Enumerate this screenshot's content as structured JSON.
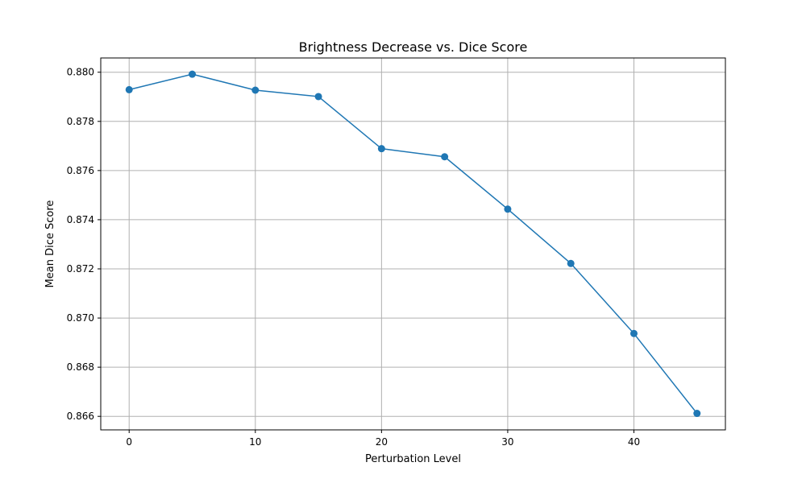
{
  "chart_data": {
    "type": "line",
    "title": "Brightness Decrease vs. Dice Score",
    "xlabel": "Perturbation Level",
    "ylabel": "Mean Dice Score",
    "xlim": [
      -2.25,
      47.25
    ],
    "ylim": [
      0.86545,
      0.88058
    ],
    "xticks": [
      0,
      10,
      20,
      30,
      40
    ],
    "xtick_labels": [
      "0",
      "10",
      "20",
      "30",
      "40"
    ],
    "yticks": [
      0.866,
      0.868,
      0.87,
      0.872,
      0.874,
      0.876,
      0.878,
      0.88
    ],
    "ytick_labels": [
      "0.866",
      "0.868",
      "0.870",
      "0.872",
      "0.874",
      "0.876",
      "0.878",
      "0.880"
    ],
    "grid": true,
    "series": [
      {
        "color": "#1f77b4",
        "marker": "circle",
        "x": [
          0,
          5,
          10,
          15,
          20,
          25,
          30,
          35,
          40,
          45
        ],
        "y": [
          0.87929,
          0.87992,
          0.87927,
          0.87901,
          0.87689,
          0.87656,
          0.87443,
          0.87222,
          0.86937,
          0.86612
        ]
      }
    ]
  }
}
